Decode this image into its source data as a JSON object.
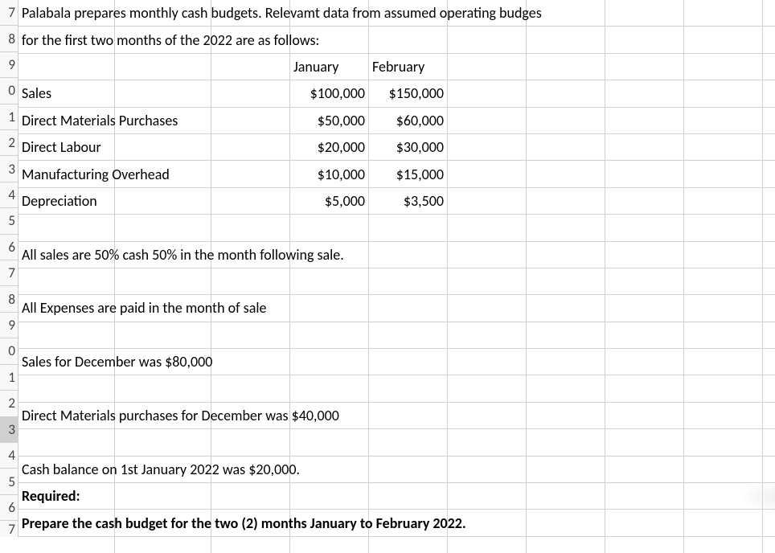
{
  "rowNumbers": [
    "7",
    "8",
    "9",
    "0",
    "1",
    "2",
    "3",
    "4",
    "5",
    "6",
    "7",
    "8",
    "9",
    "0",
    "1",
    "2",
    "3",
    "4",
    "5",
    "6",
    "7"
  ],
  "selectedRowIndex": 16,
  "rows": {
    "r7": {
      "text": "Palabala prepares monthly cash budgets. Relevamt data from assumed operating budges"
    },
    "r8": {
      "text": "for the first two months of the 2022 are as follows:"
    },
    "r9": {
      "d": "January",
      "e": "February"
    },
    "r10": {
      "a": "Sales",
      "d": "$100,000",
      "e": "$150,000"
    },
    "r11": {
      "a": "Direct Materials Purchases",
      "d": "$50,000",
      "e": "$60,000"
    },
    "r12": {
      "a": "Direct Labour",
      "d": "$20,000",
      "e": "$30,000"
    },
    "r13": {
      "a": "Manufacturing Overhead",
      "d": "$10,000",
      "e": "$15,000"
    },
    "r14": {
      "a": "Depreciation",
      "d": "$5,000",
      "e": "$3,500"
    },
    "r16": {
      "text": "All sales are 50% cash 50% in the month following sale."
    },
    "r18": {
      "text": "All Expenses are paid in the month of sale"
    },
    "r20": {
      "text": "Sales for December was $80,000"
    },
    "r22": {
      "text": "Direct Materials purchases for December was  $40,000"
    },
    "r24": {
      "text": "Cash balance on 1st January 2022 was $20,000."
    },
    "r25": {
      "text": "Required:"
    },
    "r26": {
      "text": "Prepare the cash budget for the two (2) months January to February 2022."
    }
  }
}
